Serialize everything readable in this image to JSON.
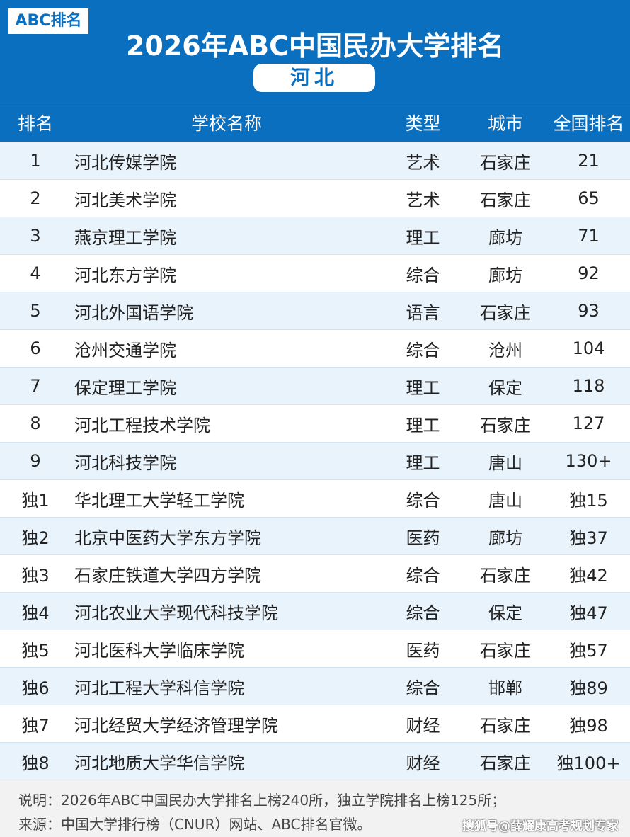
{
  "header": {
    "badge": "ABC排名",
    "title": "2026年ABC中国民办大学排名",
    "region": "河北"
  },
  "table": {
    "columns": [
      "排名",
      "学校名称",
      "类型",
      "城市",
      "全国排名"
    ],
    "rows": [
      [
        "1",
        "河北传媒学院",
        "艺术",
        "石家庄",
        "21"
      ],
      [
        "2",
        "河北美术学院",
        "艺术",
        "石家庄",
        "65"
      ],
      [
        "3",
        "燕京理工学院",
        "理工",
        "廊坊",
        "71"
      ],
      [
        "4",
        "河北东方学院",
        "综合",
        "廊坊",
        "92"
      ],
      [
        "5",
        "河北外国语学院",
        "语言",
        "石家庄",
        "93"
      ],
      [
        "6",
        "沧州交通学院",
        "综合",
        "沧州",
        "104"
      ],
      [
        "7",
        "保定理工学院",
        "理工",
        "保定",
        "118"
      ],
      [
        "8",
        "河北工程技术学院",
        "理工",
        "石家庄",
        "127"
      ],
      [
        "9",
        "河北科技学院",
        "理工",
        "唐山",
        "130+"
      ],
      [
        "独1",
        "华北理工大学轻工学院",
        "综合",
        "唐山",
        "独15"
      ],
      [
        "独2",
        "北京中医药大学东方学院",
        "医药",
        "廊坊",
        "独37"
      ],
      [
        "独3",
        "石家庄铁道大学四方学院",
        "综合",
        "石家庄",
        "独42"
      ],
      [
        "独4",
        "河北农业大学现代科技学院",
        "综合",
        "保定",
        "独47"
      ],
      [
        "独5",
        "河北医科大学临床学院",
        "医药",
        "石家庄",
        "独57"
      ],
      [
        "独6",
        "河北工程大学科信学院",
        "综合",
        "邯郸",
        "独89"
      ],
      [
        "独7",
        "河北经贸大学经济管理学院",
        "财经",
        "石家庄",
        "独98"
      ],
      [
        "独8",
        "河北地质大学华信学院",
        "财经",
        "石家庄",
        "独100+"
      ]
    ]
  },
  "footer": {
    "note": "说明：2026年ABC中国民办大学排名上榜240所，独立学院排名上榜125所；",
    "source": "来源：中国大学排行榜（CNUR）网站、ABC排名官微。",
    "watermark": "搜狐号@薛耀康高考规划专家"
  }
}
